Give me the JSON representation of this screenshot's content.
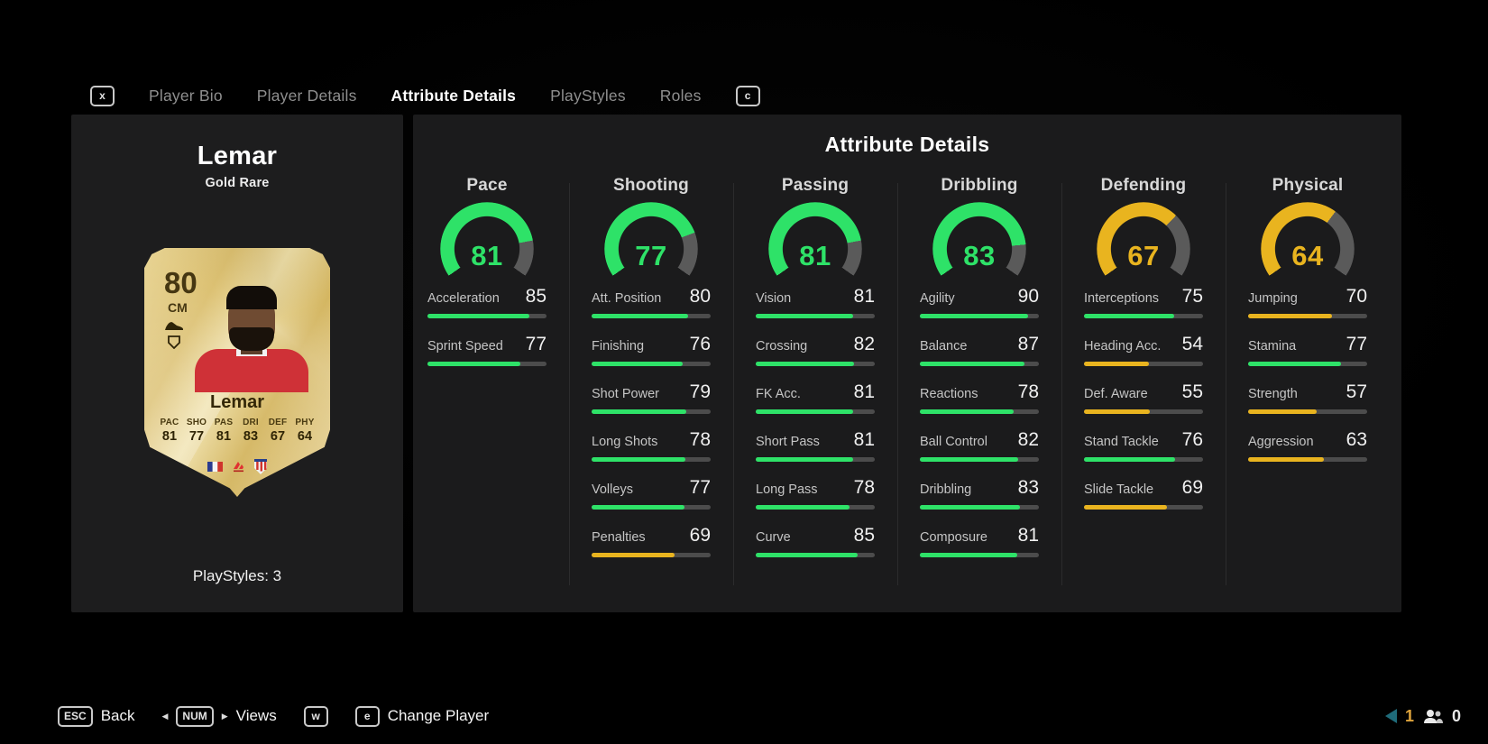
{
  "tabs": {
    "left_key": "x",
    "right_key": "c",
    "items": [
      {
        "label": "Player Bio",
        "active": false
      },
      {
        "label": "Player Details",
        "active": false
      },
      {
        "label": "Attribute Details",
        "active": true
      },
      {
        "label": "PlayStyles",
        "active": false
      },
      {
        "label": "Roles",
        "active": false
      }
    ]
  },
  "player": {
    "name": "Lemar",
    "card_type": "Gold Rare",
    "rating": "80",
    "position": "CM",
    "card_stats": [
      {
        "label": "PAC",
        "value": "81"
      },
      {
        "label": "SHO",
        "value": "77"
      },
      {
        "label": "PAS",
        "value": "81"
      },
      {
        "label": "DRI",
        "value": "83"
      },
      {
        "label": "DEF",
        "value": "67"
      },
      {
        "label": "PHY",
        "value": "64"
      }
    ],
    "nation_icon": "france-flag",
    "league_icon": "laliga",
    "club_icon": "atletico-madrid-crest",
    "playstyles_label": "PlayStyles: 3"
  },
  "panel": {
    "title": "Attribute Details",
    "categories": [
      {
        "name": "Pace",
        "rating": 81,
        "stats": [
          {
            "label": "Acceleration",
            "value": 85
          },
          {
            "label": "Sprint Speed",
            "value": 77
          }
        ]
      },
      {
        "name": "Shooting",
        "rating": 77,
        "stats": [
          {
            "label": "Att. Position",
            "value": 80
          },
          {
            "label": "Finishing",
            "value": 76
          },
          {
            "label": "Shot Power",
            "value": 79
          },
          {
            "label": "Long Shots",
            "value": 78
          },
          {
            "label": "Volleys",
            "value": 77
          },
          {
            "label": "Penalties",
            "value": 69
          }
        ]
      },
      {
        "name": "Passing",
        "rating": 81,
        "stats": [
          {
            "label": "Vision",
            "value": 81
          },
          {
            "label": "Crossing",
            "value": 82
          },
          {
            "label": "FK Acc.",
            "value": 81
          },
          {
            "label": "Short Pass",
            "value": 81
          },
          {
            "label": "Long Pass",
            "value": 78
          },
          {
            "label": "Curve",
            "value": 85
          }
        ]
      },
      {
        "name": "Dribbling",
        "rating": 83,
        "stats": [
          {
            "label": "Agility",
            "value": 90
          },
          {
            "label": "Balance",
            "value": 87
          },
          {
            "label": "Reactions",
            "value": 78
          },
          {
            "label": "Ball Control",
            "value": 82
          },
          {
            "label": "Dribbling",
            "value": 83
          },
          {
            "label": "Composure",
            "value": 81
          }
        ]
      },
      {
        "name": "Defending",
        "rating": 67,
        "stats": [
          {
            "label": "Interceptions",
            "value": 75
          },
          {
            "label": "Heading Acc.",
            "value": 54
          },
          {
            "label": "Def. Aware",
            "value": 55
          },
          {
            "label": "Stand Tackle",
            "value": 76
          },
          {
            "label": "Slide Tackle",
            "value": 69
          }
        ]
      },
      {
        "name": "Physical",
        "rating": 64,
        "stats": [
          {
            "label": "Jumping",
            "value": 70
          },
          {
            "label": "Stamina",
            "value": 77
          },
          {
            "label": "Strength",
            "value": 57
          },
          {
            "label": "Aggression",
            "value": 63
          }
        ]
      }
    ]
  },
  "footer": {
    "back_key": "ESC",
    "back_label": "Back",
    "views_left_arrow": "◀",
    "views_key": "NUM",
    "views_right_arrow": "▶",
    "views_label": "Views",
    "key_w": "w",
    "key_e": "e",
    "change_player_label": "Change Player",
    "notification_count": "1",
    "friends_count": "0"
  },
  "colors": {
    "green": "#2ee268",
    "yellow": "#e9b41f",
    "gauge_track": "#5a5a5a",
    "bar_track": "#4c4c4c",
    "notification_gold": "#dfa43c",
    "speaker_teal": "#1f6b7a",
    "card_gold": "#dcc173"
  }
}
